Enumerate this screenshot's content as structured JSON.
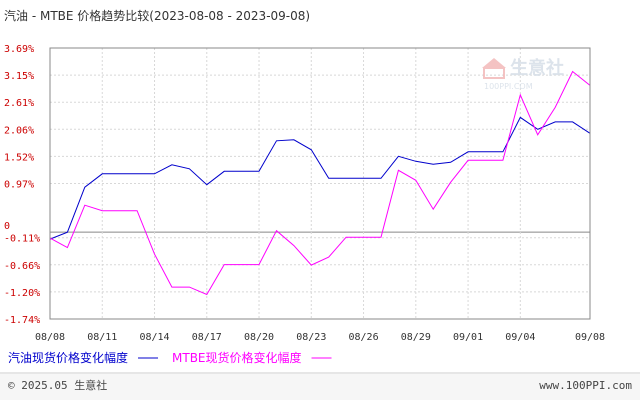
{
  "chart_data": {
    "type": "line",
    "title": "汽油 - MTBE 价格趋势比较(2023-08-08 - 2023-09-08)",
    "y_ticks": [
      "3.69%",
      "3.15%",
      "2.61%",
      "2.06%",
      "1.52%",
      "0.97%",
      "0",
      "-0.11%",
      "-0.66%",
      "-1.20%",
      "-1.74%"
    ],
    "ylim": [
      -1.74,
      3.69
    ],
    "x_ticks": [
      "08/08",
      "08/11",
      "08/14",
      "08/17",
      "08/20",
      "08/23",
      "08/26",
      "08/29",
      "09/01",
      "09/04",
      "09/08"
    ],
    "x_tick_days": [
      0,
      3,
      6,
      9,
      12,
      15,
      18,
      21,
      24,
      27,
      31
    ],
    "grid": true,
    "series": [
      {
        "name": "汽油现货价格变化幅度",
        "color": "#0000cc",
        "points": [
          [
            0,
            -0.14
          ],
          [
            1,
            0.0
          ],
          [
            2,
            0.9
          ],
          [
            3,
            1.17
          ],
          [
            4,
            1.17
          ],
          [
            5,
            1.17
          ],
          [
            6,
            1.17
          ],
          [
            7,
            1.35
          ],
          [
            8,
            1.27
          ],
          [
            9,
            0.95
          ],
          [
            10,
            1.22
          ],
          [
            11,
            1.22
          ],
          [
            12,
            1.22
          ],
          [
            13,
            1.83
          ],
          [
            14,
            1.85
          ],
          [
            15,
            1.65
          ],
          [
            16,
            1.08
          ],
          [
            17,
            1.08
          ],
          [
            18,
            1.08
          ],
          [
            19,
            1.08
          ],
          [
            20,
            1.52
          ],
          [
            21,
            1.42
          ],
          [
            22,
            1.36
          ],
          [
            23,
            1.4
          ],
          [
            24,
            1.61
          ],
          [
            25,
            1.61
          ],
          [
            26,
            1.61
          ],
          [
            27,
            2.3
          ],
          [
            28,
            2.06
          ],
          [
            29,
            2.21
          ],
          [
            30,
            2.21
          ],
          [
            31,
            1.98
          ]
        ]
      },
      {
        "name": "MTBE现货价格变化幅度",
        "color": "#ff00ff",
        "points": [
          [
            0,
            -0.12
          ],
          [
            1,
            -0.31
          ],
          [
            2,
            0.54
          ],
          [
            3,
            0.43
          ],
          [
            4,
            0.43
          ],
          [
            5,
            0.43
          ],
          [
            6,
            -0.44
          ],
          [
            7,
            -1.1
          ],
          [
            8,
            -1.1
          ],
          [
            9,
            -1.25
          ],
          [
            10,
            -0.65
          ],
          [
            11,
            -0.65
          ],
          [
            12,
            -0.65
          ],
          [
            13,
            0.03
          ],
          [
            14,
            -0.27
          ],
          [
            15,
            -0.66
          ],
          [
            16,
            -0.5
          ],
          [
            17,
            -0.1
          ],
          [
            18,
            -0.1
          ],
          [
            19,
            -0.1
          ],
          [
            20,
            1.24
          ],
          [
            21,
            1.04
          ],
          [
            22,
            0.46
          ],
          [
            23,
            1.0
          ],
          [
            24,
            1.44
          ],
          [
            25,
            1.44
          ],
          [
            26,
            1.44
          ],
          [
            27,
            2.75
          ],
          [
            28,
            1.95
          ],
          [
            29,
            2.5
          ],
          [
            30,
            3.22
          ],
          [
            31,
            2.94
          ]
        ]
      }
    ]
  },
  "footer": {
    "copyright": "© 2025.05 生意社",
    "url": "www.100PPI.com"
  },
  "watermark": {
    "text": "生意社",
    "subtext": "100PPI.COM"
  }
}
